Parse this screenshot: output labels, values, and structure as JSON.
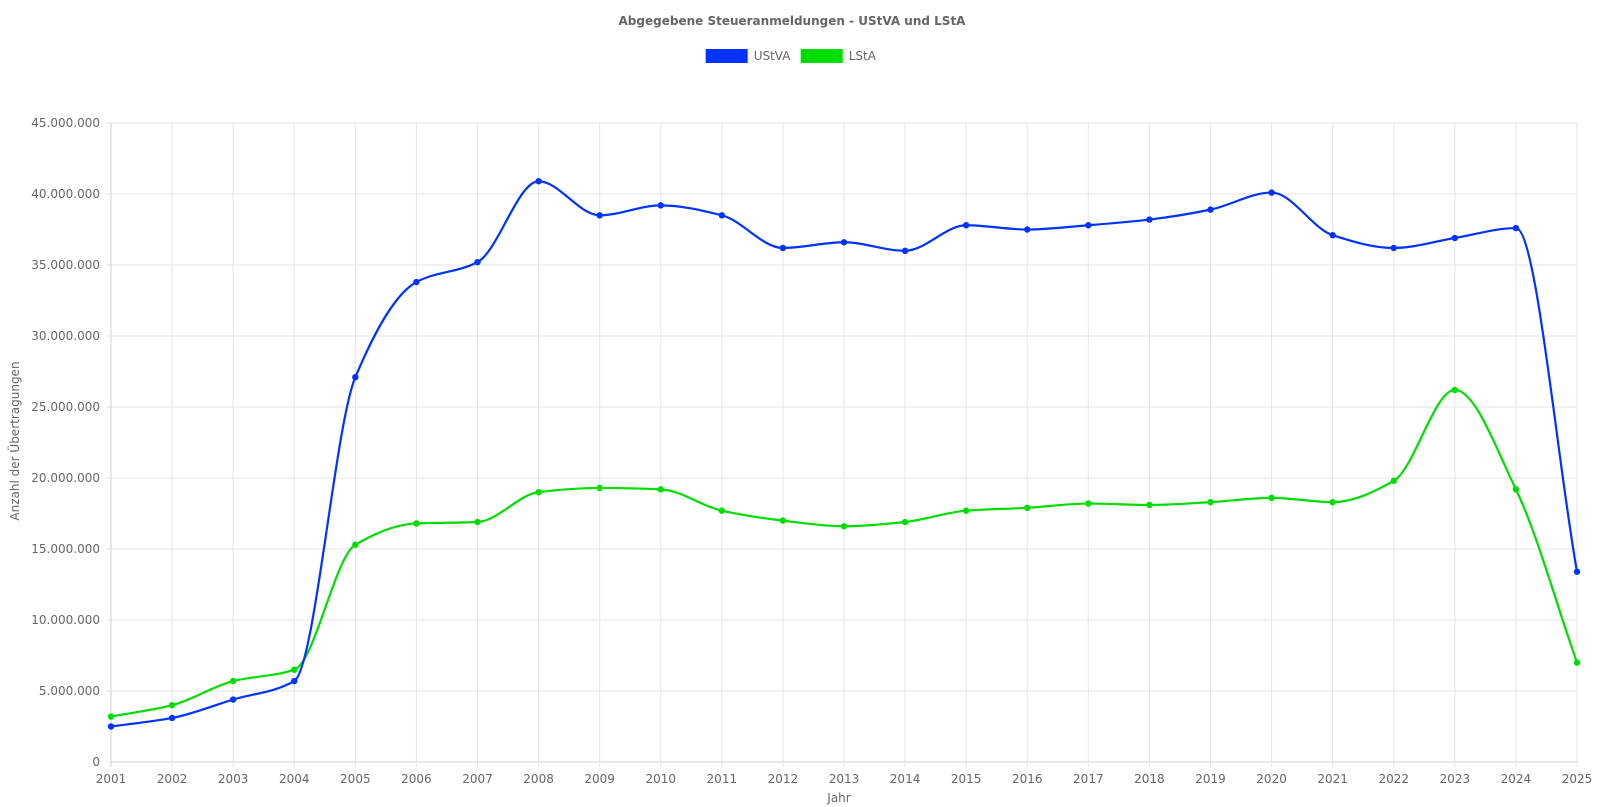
{
  "chart_data": {
    "type": "line",
    "title": "Abgegebene Steueranmeldungen - UStVA und LStA",
    "xlabel": "Jahr",
    "ylabel": "Anzahl der Übertragungen",
    "categories": [
      "2001",
      "2002",
      "2003",
      "2004",
      "2005",
      "2006",
      "2007",
      "2008",
      "2009",
      "2010",
      "2011",
      "2012",
      "2013",
      "2014",
      "2015",
      "2016",
      "2017",
      "2018",
      "2019",
      "2020",
      "2021",
      "2022",
      "2023",
      "2024",
      "2025"
    ],
    "ylim": [
      0,
      45000000
    ],
    "yticks": [
      0,
      5000000,
      10000000,
      15000000,
      20000000,
      25000000,
      30000000,
      35000000,
      40000000,
      45000000
    ],
    "ytick_labels": [
      "0",
      "5.000.000",
      "10.000.000",
      "15.000.000",
      "20.000.000",
      "25.000.000",
      "30.000.000",
      "35.000.000",
      "40.000.000",
      "45.000.000"
    ],
    "grid": true,
    "legend_position": "top-center",
    "series": [
      {
        "name": "UStVA",
        "color": "#0033ff",
        "values": [
          2500000,
          3100000,
          4400000,
          5700000,
          27100000,
          33800000,
          35200000,
          40900000,
          38500000,
          39200000,
          38500000,
          36200000,
          36600000,
          36000000,
          37800000,
          37500000,
          37800000,
          38200000,
          38900000,
          40100000,
          37100000,
          36200000,
          36900000,
          37600000,
          13400000
        ]
      },
      {
        "name": "LStA",
        "color": "#00dd00",
        "values": [
          3200000,
          4000000,
          5700000,
          6500000,
          15300000,
          16800000,
          16900000,
          19000000,
          19300000,
          19200000,
          17700000,
          17000000,
          16600000,
          16900000,
          17700000,
          17900000,
          18200000,
          18100000,
          18300000,
          18600000,
          18300000,
          19800000,
          26200000,
          19200000,
          7000000
        ]
      }
    ]
  }
}
